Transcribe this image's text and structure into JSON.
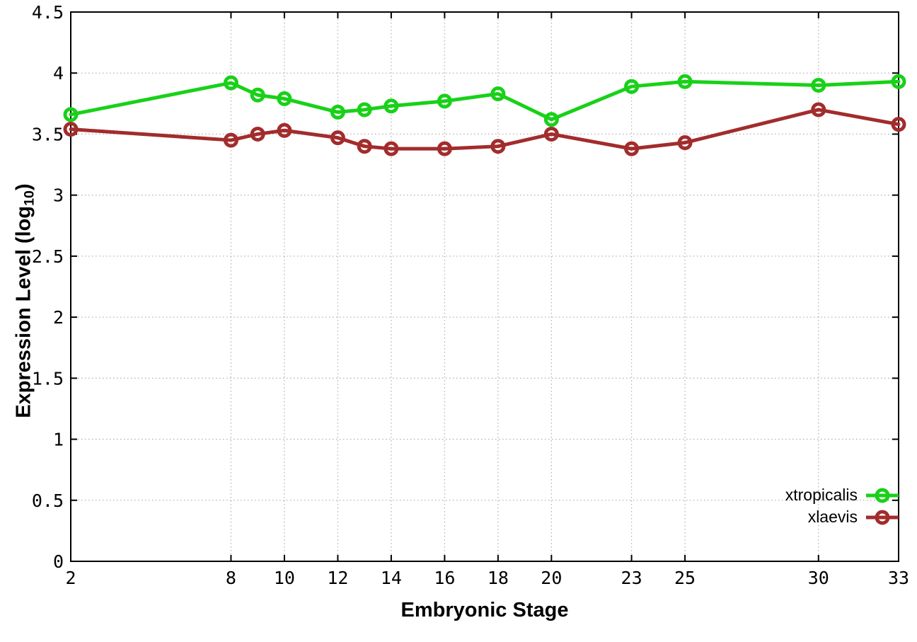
{
  "chart_data": {
    "type": "line",
    "title": "",
    "xlabel": "Embryonic Stage",
    "ylabel": "Expression Level (log10)",
    "ylabel_parts": {
      "pre": "Expression Level (log",
      "sub": "10",
      "post": ")"
    },
    "x": [
      2,
      8,
      9,
      10,
      12,
      13,
      14,
      16,
      18,
      20,
      23,
      25,
      30,
      33
    ],
    "series": [
      {
        "name": "xtropicalis",
        "color": "#18d118",
        "values": [
          3.66,
          3.92,
          3.82,
          3.79,
          3.68,
          3.7,
          3.73,
          3.77,
          3.83,
          3.62,
          3.89,
          3.93,
          3.9,
          3.93
        ]
      },
      {
        "name": "xlaevis",
        "color": "#a22c2c",
        "values": [
          3.54,
          3.45,
          3.5,
          3.53,
          3.47,
          3.4,
          3.38,
          3.38,
          3.4,
          3.5,
          3.38,
          3.43,
          3.7,
          3.58
        ]
      }
    ],
    "xlim": [
      2,
      33
    ],
    "ylim": [
      0,
      4.5
    ],
    "x_ticks": [
      2,
      8,
      10,
      12,
      14,
      16,
      18,
      20,
      23,
      25,
      30,
      33
    ],
    "x_tick_labels": [
      "2",
      "8",
      "10",
      "12",
      "14",
      "16",
      "18",
      "20",
      "23",
      "25",
      "30",
      "33"
    ],
    "y_ticks": [
      0,
      0.5,
      1,
      1.5,
      2,
      2.5,
      3,
      3.5,
      4,
      4.5
    ],
    "y_tick_labels": [
      "0",
      "0.5",
      "1",
      "1.5",
      "2",
      "2.5",
      "3",
      "3.5",
      "4",
      "4.5"
    ],
    "grid": true,
    "legend_position": "bottom-right-inside",
    "marker": "open-circle"
  },
  "colors": {
    "axis": "#000000",
    "grid": "#b4b4b4",
    "background": "#ffffff",
    "text": "#000000"
  }
}
